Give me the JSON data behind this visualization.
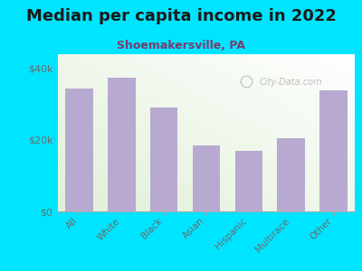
{
  "title": "Median per capita income in 2022",
  "subtitle": "Shoemakersville, PA",
  "categories": [
    "All",
    "White",
    "Black",
    "Asian",
    "Hispanic",
    "Multirace",
    "Other"
  ],
  "values": [
    34500,
    37500,
    29000,
    18500,
    17000,
    20500,
    34000
  ],
  "bar_color": "#b8a9d0",
  "bg_color": "#00e5ff",
  "plot_bg_top_right": "#ffffff",
  "plot_bg_bottom_left": "#dff0d8",
  "title_color": "#1a1a1a",
  "subtitle_color": "#7a3b6e",
  "tick_label_color": "#6b6b6b",
  "ytick_labels": [
    "$0",
    "$20k",
    "$40k"
  ],
  "ytick_values": [
    0,
    20000,
    40000
  ],
  "ylim": [
    0,
    44000
  ],
  "watermark": "City-Data.com",
  "title_fontsize": 13,
  "subtitle_fontsize": 9
}
